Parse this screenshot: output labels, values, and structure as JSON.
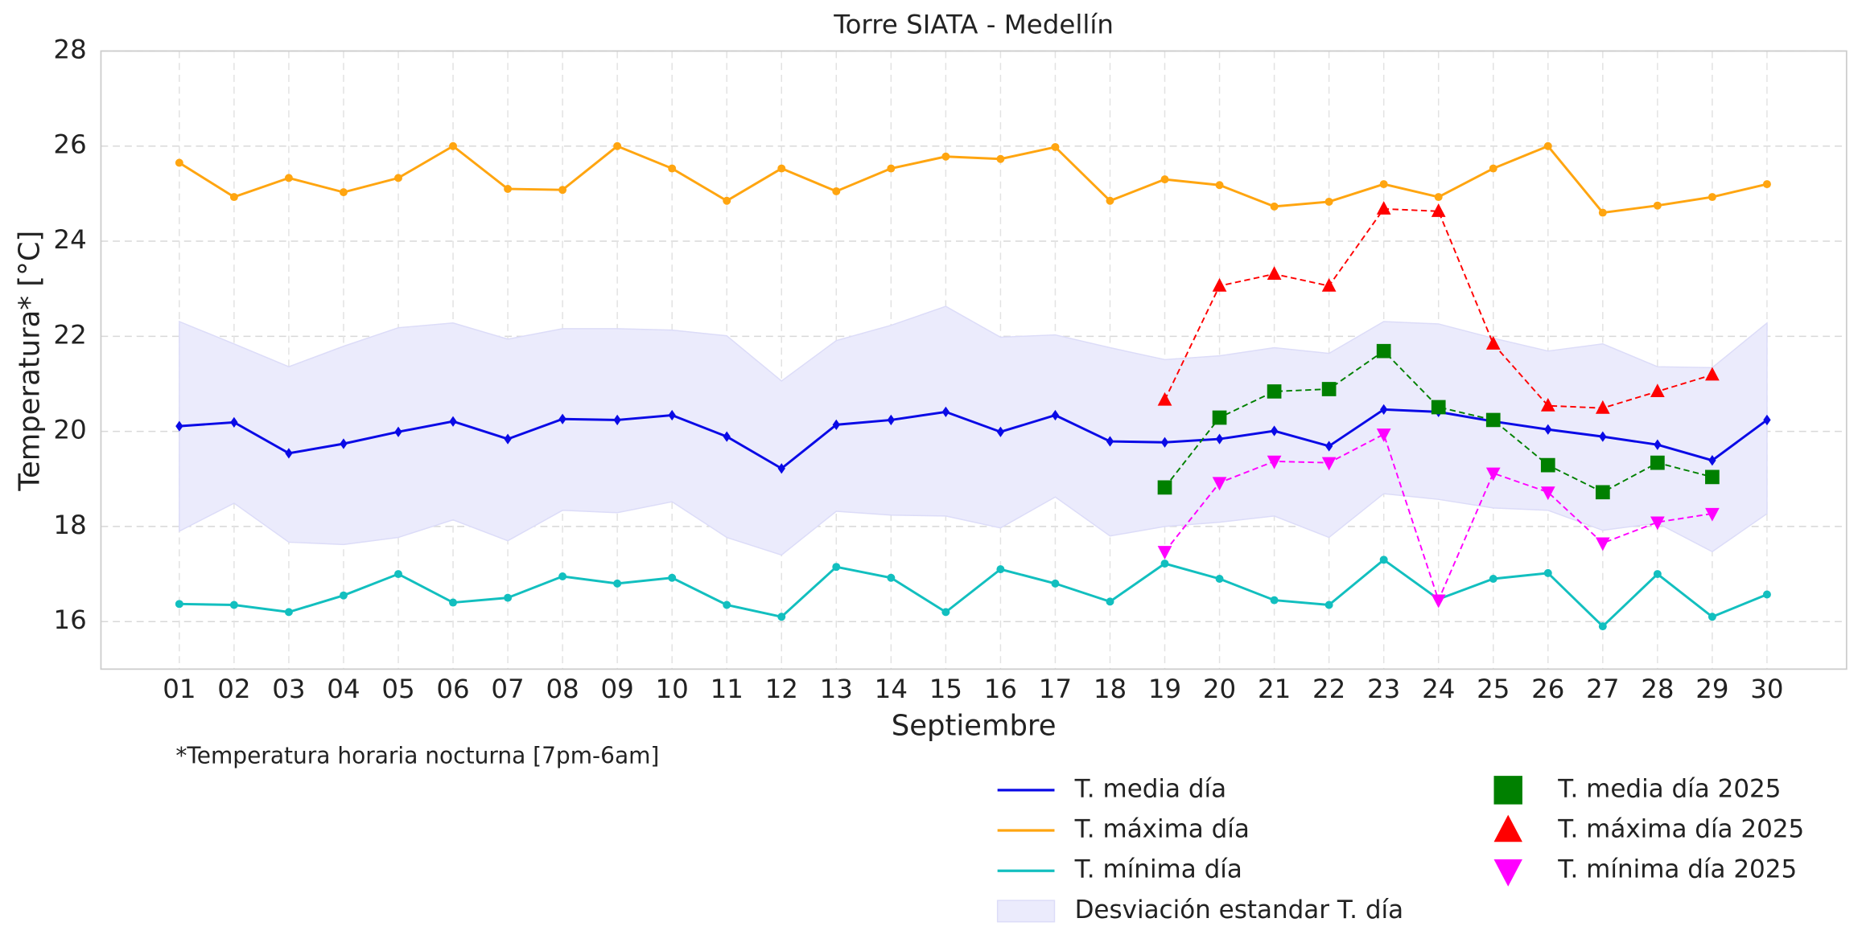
{
  "chart_data": {
    "type": "line",
    "title": "Torre SIATA - Medellín",
    "xlabel": "Septiembre",
    "ylabel": "Temperatura* [°C]",
    "annotation": "*Temperatura horaria nocturna [7pm-6am]",
    "categories": [
      "01",
      "02",
      "03",
      "04",
      "05",
      "06",
      "07",
      "08",
      "09",
      "10",
      "11",
      "12",
      "13",
      "14",
      "15",
      "16",
      "17",
      "18",
      "19",
      "20",
      "21",
      "22",
      "23",
      "24",
      "25",
      "26",
      "27",
      "28",
      "29",
      "30"
    ],
    "ylim": [
      15,
      28
    ],
    "yticks": [
      16,
      18,
      20,
      22,
      24,
      26,
      28
    ],
    "grid": true,
    "legend": "bottom right",
    "series": [
      {
        "name": "T. media día",
        "color": "#0a0ae6",
        "linestyle": "solid",
        "marker": "diamond",
        "values": [
          20.11,
          20.19,
          19.54,
          19.74,
          19.99,
          20.21,
          19.84,
          20.26,
          20.24,
          20.34,
          19.89,
          19.22,
          20.14,
          20.24,
          20.41,
          19.99,
          20.34,
          19.79,
          19.77,
          19.84,
          20.01,
          19.69,
          20.46,
          20.41,
          20.21,
          20.04,
          19.89,
          19.72,
          19.39,
          20.24
        ]
      },
      {
        "name": "T. máxima día",
        "color": "#ffa510",
        "linestyle": "solid",
        "marker": "circle",
        "values": [
          25.65,
          24.93,
          25.33,
          25.03,
          25.33,
          26.0,
          25.1,
          25.08,
          26.0,
          25.53,
          24.85,
          25.53,
          25.05,
          25.53,
          25.78,
          25.73,
          25.98,
          24.85,
          25.3,
          25.18,
          24.73,
          24.83,
          25.2,
          24.93,
          25.53,
          26.0,
          24.6,
          24.75,
          24.93,
          25.2
        ]
      },
      {
        "name": "T. mínima día",
        "color": "#12bfbf",
        "linestyle": "solid",
        "marker": "circle",
        "values": [
          16.37,
          16.35,
          16.2,
          16.55,
          17.0,
          16.4,
          16.5,
          16.95,
          16.8,
          16.92,
          16.35,
          16.1,
          17.15,
          16.92,
          16.2,
          17.1,
          16.8,
          16.42,
          17.22,
          16.9,
          16.45,
          16.35,
          17.3,
          16.47,
          16.9,
          17.02,
          15.9,
          17.0,
          16.1,
          16.57
        ]
      },
      {
        "name": "Desviación estandar T. día",
        "color": "#ebebfc",
        "marker": "band",
        "upper": [
          22.31,
          21.84,
          21.36,
          21.79,
          22.18,
          22.28,
          21.94,
          22.16,
          22.16,
          22.13,
          22.01,
          21.06,
          21.91,
          22.23,
          22.63,
          21.98,
          22.03,
          21.76,
          21.51,
          21.59,
          21.76,
          21.64,
          22.31,
          22.26,
          21.96,
          21.69,
          21.84,
          21.36,
          21.34,
          22.28
        ],
        "lower": [
          17.9,
          18.49,
          17.67,
          17.62,
          17.77,
          18.14,
          17.7,
          18.34,
          18.29,
          18.52,
          17.77,
          17.4,
          18.32,
          18.24,
          18.22,
          17.97,
          18.62,
          17.8,
          18.0,
          18.09,
          18.22,
          17.77,
          18.69,
          18.57,
          18.39,
          18.34,
          17.92,
          18.07,
          17.47,
          18.27
        ]
      },
      {
        "name": "T. media día 2025",
        "color": "#008000",
        "linestyle": "dashed",
        "marker": "square",
        "values": [
          null,
          null,
          null,
          null,
          null,
          null,
          null,
          null,
          null,
          null,
          null,
          null,
          null,
          null,
          null,
          null,
          null,
          null,
          18.82,
          20.29,
          20.84,
          20.89,
          21.69,
          20.51,
          20.24,
          19.29,
          18.72,
          19.34,
          19.04,
          null
        ]
      },
      {
        "name": "T. máxima día 2025",
        "color": "#ff0000",
        "linestyle": "dashed",
        "marker": "triangle-up",
        "values": [
          null,
          null,
          null,
          null,
          null,
          null,
          null,
          null,
          null,
          null,
          null,
          null,
          null,
          null,
          null,
          null,
          null,
          null,
          20.66,
          23.06,
          23.31,
          23.06,
          24.68,
          24.63,
          21.84,
          20.54,
          20.49,
          20.84,
          21.19,
          null
        ]
      },
      {
        "name": "T. mínima día 2025",
        "color": "#ff00ff",
        "linestyle": "dashed",
        "marker": "triangle-down",
        "values": [
          null,
          null,
          null,
          null,
          null,
          null,
          null,
          null,
          null,
          null,
          null,
          null,
          null,
          null,
          null,
          null,
          null,
          null,
          17.47,
          18.92,
          19.37,
          19.34,
          19.94,
          16.45,
          19.12,
          18.72,
          17.65,
          18.09,
          18.27,
          null
        ]
      }
    ]
  }
}
